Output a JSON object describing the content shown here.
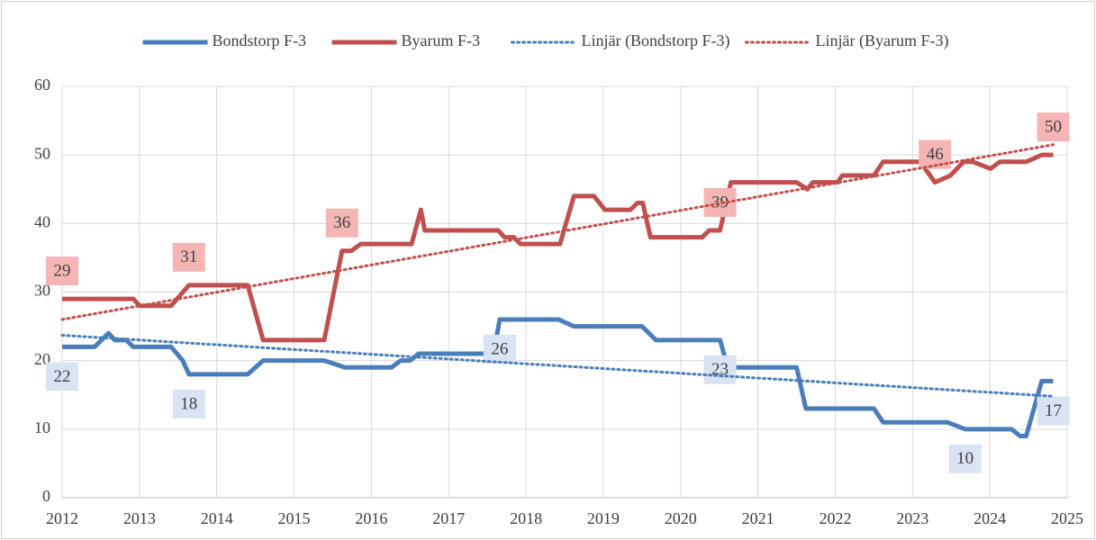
{
  "chart_data": {
    "type": "line",
    "xlim": [
      2012,
      2025
    ],
    "xticks": [
      2012,
      2013,
      2014,
      2015,
      2016,
      2017,
      2018,
      2019,
      2020,
      2021,
      2022,
      2023,
      2024,
      2025
    ],
    "ylim": [
      0,
      60
    ],
    "yticks": [
      0,
      10,
      20,
      30,
      40,
      50,
      60
    ],
    "grid": true,
    "legend": "top",
    "series": [
      {
        "name": "Bondstorp F-3",
        "color": "#4a7ebb",
        "style": "solid",
        "label_position": "below",
        "x": [
          2012.0,
          2012.42,
          2012.6,
          2012.68,
          2012.83,
          2012.92,
          2013.41,
          2013.56,
          2013.64,
          2014.4,
          2014.6,
          2015.39,
          2015.66,
          2016.26,
          2016.38,
          2016.5,
          2016.61,
          2017.58,
          2017.66,
          2018.42,
          2018.62,
          2019.5,
          2019.68,
          2020.51,
          2020.61,
          2021.5,
          2021.62,
          2022.5,
          2022.62,
          2023.45,
          2023.68,
          2024.28,
          2024.39,
          2024.47,
          2024.67,
          2024.82
        ],
        "values": [
          22,
          22,
          24,
          23,
          23,
          22,
          22,
          20,
          18,
          18,
          20,
          20,
          19,
          19,
          20,
          20,
          21,
          21,
          26,
          26,
          25,
          25,
          23,
          23,
          19,
          19,
          13,
          13,
          11,
          11,
          10,
          10,
          9,
          9,
          17,
          17
        ],
        "value_labels": [
          "22",
          null,
          null,
          null,
          null,
          null,
          null,
          null,
          "18",
          null,
          null,
          null,
          null,
          null,
          null,
          null,
          null,
          null,
          "26",
          null,
          null,
          null,
          null,
          "23",
          null,
          null,
          null,
          null,
          null,
          null,
          "10",
          null,
          null,
          null,
          null,
          "17"
        ]
      },
      {
        "name": "Byarum F-3",
        "color": "#c0504d",
        "style": "solid",
        "label_position": "above",
        "x": [
          2012.0,
          2012.92,
          2013.0,
          2013.41,
          2013.64,
          2014.4,
          2014.6,
          2015.39,
          2015.62,
          2015.74,
          2015.86,
          2016.52,
          2016.64,
          2016.69,
          2017.64,
          2017.72,
          2017.84,
          2017.93,
          2018.44,
          2018.62,
          2018.88,
          2019.02,
          2019.35,
          2019.44,
          2019.51,
          2019.61,
          2020.28,
          2020.37,
          2020.51,
          2020.65,
          2021.5,
          2021.64,
          2021.71,
          2022.03,
          2022.09,
          2022.5,
          2022.62,
          2023.1,
          2023.29,
          2023.49,
          2023.66,
          2023.78,
          2024.01,
          2024.13,
          2024.47,
          2024.67,
          2024.82
        ],
        "values": [
          29,
          29,
          28,
          28,
          31,
          31,
          23,
          23,
          36,
          36,
          37,
          37,
          42,
          39,
          39,
          38,
          38,
          37,
          37,
          44,
          44,
          42,
          42,
          43,
          43,
          38,
          38,
          39,
          39,
          46,
          46,
          45,
          46,
          46,
          47,
          47,
          49,
          49,
          46,
          47,
          49,
          49,
          48,
          49,
          49,
          50,
          50
        ],
        "value_labels": [
          "29",
          null,
          null,
          null,
          "31",
          null,
          null,
          null,
          "36",
          null,
          null,
          null,
          null,
          null,
          null,
          null,
          null,
          null,
          null,
          null,
          null,
          null,
          null,
          null,
          null,
          null,
          null,
          null,
          "39",
          null,
          null,
          null,
          null,
          null,
          null,
          null,
          null,
          null,
          "46",
          null,
          null,
          null,
          null,
          null,
          null,
          null,
          "50"
        ]
      },
      {
        "name": "Linjär (Bondstorp F-3)",
        "color": "#4a7ebb",
        "style": "dotted",
        "x": [
          2012.0,
          2024.82
        ],
        "values": [
          23.7,
          14.8
        ]
      },
      {
        "name": "Linjär (Byarum F-3)",
        "color": "#c0504d",
        "style": "dotted",
        "x": [
          2012.0,
          2024.82
        ],
        "values": [
          26,
          51.5
        ]
      }
    ]
  }
}
